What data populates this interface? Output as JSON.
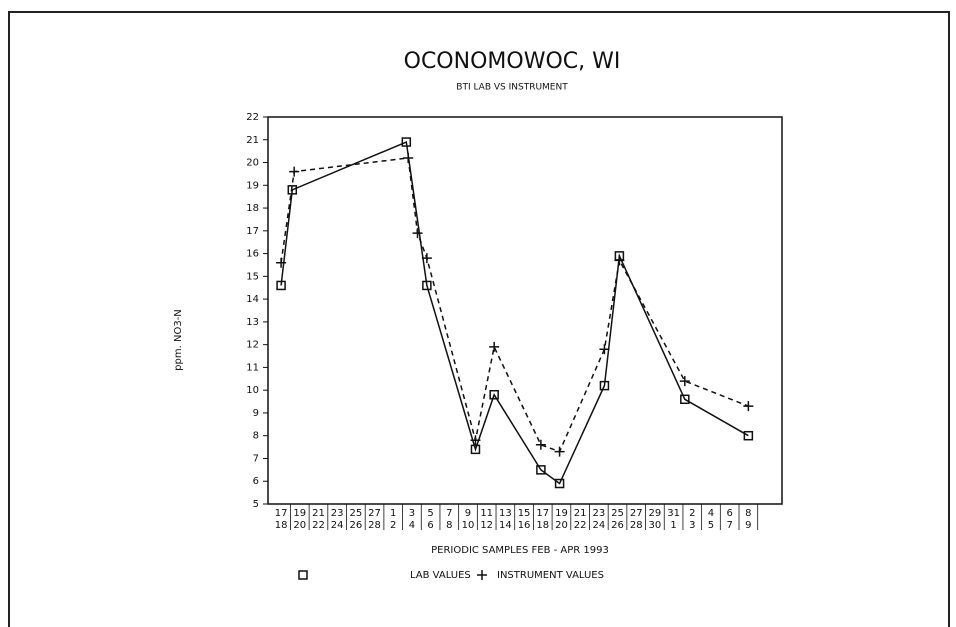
{
  "chart_data": {
    "type": "line",
    "title": "OCONOMOWOC, WI",
    "subtitle": "BTI LAB VS INSTRUMENT",
    "y_label": "ppm. NO3-N",
    "x_label": "PERIODIC SAMPLES FEB - APR 1993",
    "ylim": [
      5,
      22
    ],
    "yticks": [
      5,
      6,
      7,
      8,
      9,
      10,
      11,
      12,
      13,
      14,
      15,
      16,
      17,
      18,
      19,
      20,
      21,
      22
    ],
    "xlim": [
      -0.7,
      26.8
    ],
    "xticks": [
      {
        "value": 0,
        "label": [
          "17",
          "18"
        ]
      },
      {
        "value": 1,
        "label": [
          "19",
          "20"
        ]
      },
      {
        "value": 2,
        "label": [
          "21",
          "22"
        ]
      },
      {
        "value": 3,
        "label": [
          "23",
          "24"
        ]
      },
      {
        "value": 4,
        "label": [
          "25",
          "26"
        ]
      },
      {
        "value": 5,
        "label": [
          "27",
          "28"
        ]
      },
      {
        "value": 6,
        "label": [
          "1",
          "2"
        ]
      },
      {
        "value": 7,
        "label": [
          "3",
          "4"
        ]
      },
      {
        "value": 8,
        "label": [
          "5",
          "6"
        ]
      },
      {
        "value": 9,
        "label": [
          "7",
          "8"
        ]
      },
      {
        "value": 10,
        "label": [
          "9",
          "10"
        ]
      },
      {
        "value": 11,
        "label": [
          "11",
          "12"
        ]
      },
      {
        "value": 12,
        "label": [
          "13",
          "14"
        ]
      },
      {
        "value": 13,
        "label": [
          "15",
          "16"
        ]
      },
      {
        "value": 14,
        "label": [
          "17",
          "18"
        ]
      },
      {
        "value": 15,
        "label": [
          "19",
          "20"
        ]
      },
      {
        "value": 16,
        "label": [
          "21",
          "22"
        ]
      },
      {
        "value": 17,
        "label": [
          "23",
          "24"
        ]
      },
      {
        "value": 18,
        "label": [
          "25",
          "26"
        ]
      },
      {
        "value": 19,
        "label": [
          "27",
          "28"
        ]
      },
      {
        "value": 20,
        "label": [
          "29",
          "30"
        ]
      },
      {
        "value": 21,
        "label": [
          "31",
          "1"
        ]
      },
      {
        "value": 22,
        "label": [
          "2",
          "3"
        ]
      },
      {
        "value": 23,
        "label": [
          "4",
          "5"
        ]
      },
      {
        "value": 24,
        "label": [
          "6",
          "7"
        ]
      },
      {
        "value": 25,
        "label": [
          "8",
          "9"
        ]
      }
    ],
    "series": [
      {
        "name": "LAB VALUES",
        "color": "#111111",
        "marker": "square",
        "dashed": false,
        "x": [
          0,
          0.6,
          6.7,
          7.8,
          10.4,
          11.4,
          13.9,
          14.9,
          17.3,
          18.1,
          21.6,
          25
        ],
        "values": [
          14.6,
          18.8,
          20.9,
          14.6,
          7.4,
          9.8,
          6.5,
          5.9,
          10.2,
          15.9,
          9.6,
          8.0
        ]
      },
      {
        "name": "INSTRUMENT VALUES",
        "color": "#111111",
        "marker": "plus",
        "dashed": true,
        "x": [
          0,
          0.7,
          6.8,
          7.3,
          7.8,
          10.4,
          11.4,
          13.9,
          14.9,
          17.3,
          18.1,
          21.6,
          25
        ],
        "values": [
          15.6,
          19.6,
          20.2,
          16.9,
          15.8,
          7.8,
          11.9,
          7.6,
          7.3,
          11.8,
          15.7,
          10.4,
          9.3
        ]
      }
    ]
  }
}
